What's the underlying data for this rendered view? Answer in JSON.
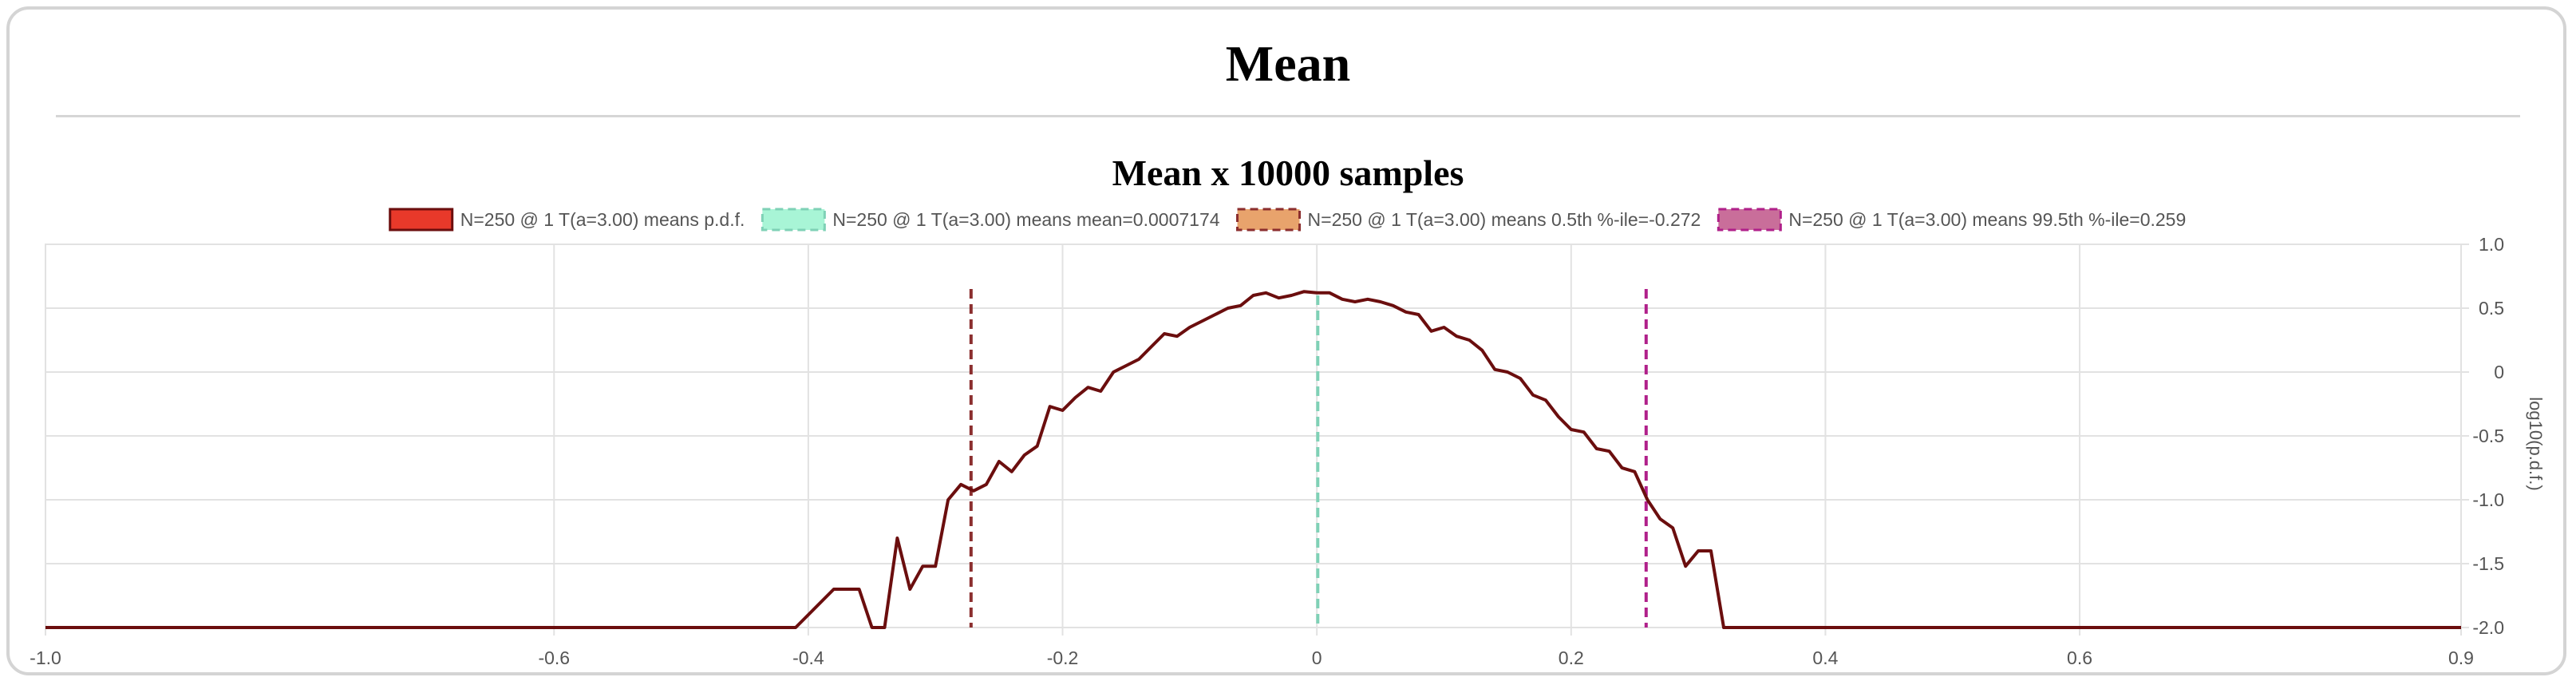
{
  "page": {
    "title": "Mean"
  },
  "colors": {
    "pdf_line": "#6b0e0e",
    "pdf_fill": "#e8392a",
    "mean": "#7fd1b6",
    "mean_fill": "#a8f5d6",
    "p05": "#8b2e2e",
    "p05_fill": "#e8a36c",
    "p995": "#b0208a",
    "p995_fill": "#c96e9a",
    "grid": "#e2e2e2",
    "axis_text": "#555555"
  },
  "chart_data": {
    "type": "line",
    "title": "Mean x 10000 samples",
    "ylabel": "log10(p.d.f.)",
    "xlabel": "",
    "xlim": [
      -1.0,
      0.9
    ],
    "ylim": [
      -2.0,
      1.0
    ],
    "x_ticks": [
      -1.0,
      -0.6,
      -0.4,
      -0.2,
      0,
      0.2,
      0.4,
      0.6,
      0.9
    ],
    "x_tick_labels": [
      "-1.0",
      "-0.6",
      "-0.4",
      "-0.2",
      "0",
      "0.2",
      "0.4",
      "0.6",
      "0.9"
    ],
    "y_ticks": [
      1.0,
      0.5,
      0,
      -0.5,
      -1.0,
      -1.5,
      -2.0
    ],
    "y_tick_labels": [
      "1.0",
      "0.5",
      "0",
      "-0.5",
      "-1.0",
      "-1.5",
      "-2.0"
    ],
    "legend": [
      {
        "label": "N=250 @ 1 T(a=3.00) means p.d.f.",
        "style": "solid",
        "key": "pdf"
      },
      {
        "label": "N=250 @ 1 T(a=3.00) means mean=0.0007174",
        "style": "dashed",
        "key": "mean"
      },
      {
        "label": "N=250 @ 1 T(a=3.00) means 0.5th %-ile=-0.272",
        "style": "dashed",
        "key": "p05"
      },
      {
        "label": "N=250 @ 1 T(a=3.00) means 99.5th %-ile=0.259",
        "style": "dashed",
        "key": "p995"
      }
    ],
    "series": [
      {
        "name": "N=250 @ 1 T(a=3.00) means p.d.f.",
        "x": [
          -1.0,
          -0.41,
          -0.38,
          -0.36,
          -0.35,
          -0.34,
          -0.33,
          -0.32,
          -0.31,
          -0.3,
          -0.29,
          -0.28,
          -0.27,
          -0.26,
          -0.25,
          -0.24,
          -0.23,
          -0.22,
          -0.21,
          -0.2,
          -0.19,
          -0.18,
          -0.17,
          -0.16,
          -0.15,
          -0.14,
          -0.13,
          -0.12,
          -0.11,
          -0.1,
          -0.09,
          -0.08,
          -0.07,
          -0.06,
          -0.05,
          -0.04,
          -0.03,
          -0.02,
          -0.01,
          0.0,
          0.01,
          0.02,
          0.03,
          0.04,
          0.05,
          0.06,
          0.07,
          0.08,
          0.09,
          0.1,
          0.11,
          0.12,
          0.13,
          0.14,
          0.15,
          0.16,
          0.17,
          0.18,
          0.19,
          0.2,
          0.21,
          0.22,
          0.23,
          0.24,
          0.25,
          0.26,
          0.27,
          0.28,
          0.29,
          0.3,
          0.31,
          0.32,
          0.33,
          0.9
        ],
        "y": [
          -2.0,
          -2.0,
          -1.7,
          -1.7,
          -2.0,
          -2.0,
          -1.3,
          -1.7,
          -1.52,
          -1.52,
          -1.0,
          -0.88,
          -0.93,
          -0.88,
          -0.7,
          -0.78,
          -0.65,
          -0.58,
          -0.27,
          -0.3,
          -0.2,
          -0.12,
          -0.15,
          0.0,
          0.05,
          0.1,
          0.2,
          0.3,
          0.28,
          0.35,
          0.4,
          0.45,
          0.5,
          0.52,
          0.6,
          0.62,
          0.58,
          0.6,
          0.63,
          0.62,
          0.62,
          0.57,
          0.55,
          0.57,
          0.55,
          0.52,
          0.47,
          0.45,
          0.32,
          0.35,
          0.28,
          0.25,
          0.17,
          0.02,
          0.0,
          -0.05,
          -0.18,
          -0.22,
          -0.35,
          -0.45,
          -0.47,
          -0.6,
          -0.62,
          -0.75,
          -0.78,
          -1.0,
          -1.15,
          -1.22,
          -1.52,
          -1.4,
          -1.4,
          -2.0,
          -2.0,
          -2.0
        ]
      }
    ],
    "vlines": [
      {
        "name": "mean",
        "x": 0.0007174,
        "y_top": 0.6
      },
      {
        "name": "0.5th %-ile",
        "x": -0.272,
        "y_top": 0.65
      },
      {
        "name": "99.5th %-ile",
        "x": 0.259,
        "y_top": 0.65
      }
    ]
  }
}
